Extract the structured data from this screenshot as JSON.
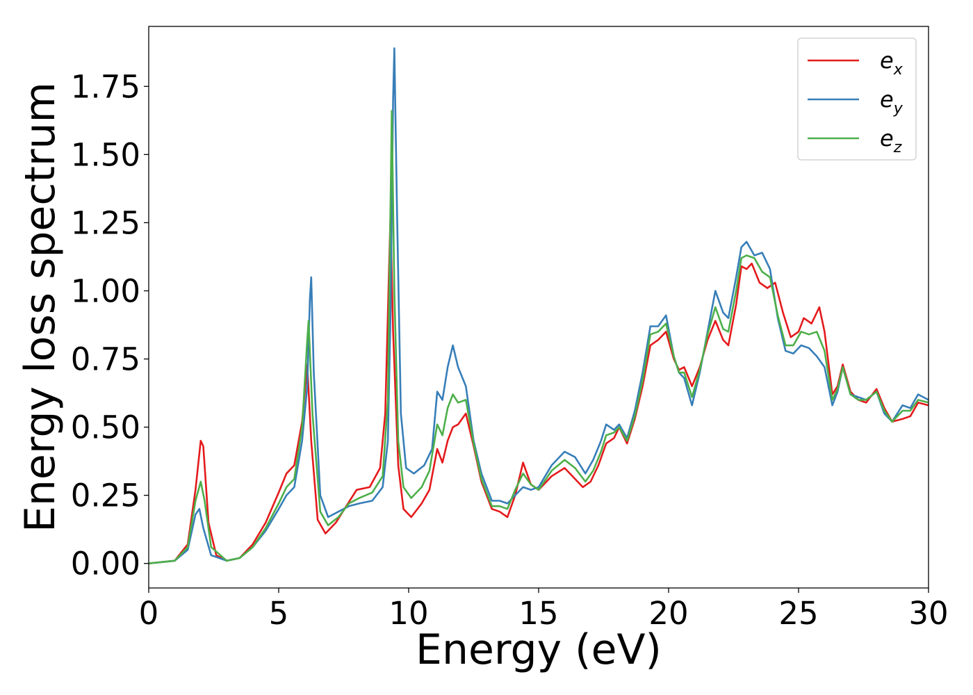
{
  "chart_data": {
    "type": "line",
    "title": "",
    "xlabel": "Energy (eV)",
    "ylabel": "Energy loss spectrum",
    "xlim": [
      0,
      30
    ],
    "ylim": [
      -0.09,
      1.97
    ],
    "xticks": [
      0,
      5,
      10,
      15,
      20,
      25,
      30
    ],
    "xtick_labels": [
      "0",
      "5",
      "10",
      "15",
      "20",
      "25",
      "30"
    ],
    "yticks": [
      0.0,
      0.25,
      0.5,
      0.75,
      1.0,
      1.25,
      1.5,
      1.75
    ],
    "ytick_labels": [
      "0.00",
      "0.25",
      "0.50",
      "0.75",
      "1.00",
      "1.25",
      "1.50",
      "1.75"
    ],
    "grid": false,
    "legend_position": "top-right",
    "series": [
      {
        "name": "e_x",
        "legend_base": "e",
        "legend_sub": "x",
        "color": "#e41a1c",
        "points": [
          [
            0,
            0
          ],
          [
            1,
            0.01
          ],
          [
            1.5,
            0.07
          ],
          [
            1.8,
            0.27
          ],
          [
            2.0,
            0.45
          ],
          [
            2.1,
            0.43
          ],
          [
            2.3,
            0.15
          ],
          [
            2.6,
            0.03
          ],
          [
            3.0,
            0.01
          ],
          [
            3.5,
            0.02
          ],
          [
            4.0,
            0.07
          ],
          [
            4.5,
            0.15
          ],
          [
            5.0,
            0.26
          ],
          [
            5.3,
            0.33
          ],
          [
            5.6,
            0.36
          ],
          [
            5.9,
            0.52
          ],
          [
            6.1,
            0.73
          ],
          [
            6.25,
            0.45
          ],
          [
            6.5,
            0.16
          ],
          [
            6.8,
            0.11
          ],
          [
            7.2,
            0.15
          ],
          [
            7.6,
            0.21
          ],
          [
            8.0,
            0.27
          ],
          [
            8.5,
            0.28
          ],
          [
            8.9,
            0.35
          ],
          [
            9.1,
            0.55
          ],
          [
            9.25,
            1.1
          ],
          [
            9.3,
            1.27
          ],
          [
            9.4,
            0.85
          ],
          [
            9.6,
            0.36
          ],
          [
            9.8,
            0.2
          ],
          [
            10.1,
            0.17
          ],
          [
            10.5,
            0.22
          ],
          [
            10.8,
            0.27
          ],
          [
            11.1,
            0.42
          ],
          [
            11.3,
            0.37
          ],
          [
            11.5,
            0.45
          ],
          [
            11.7,
            0.5
          ],
          [
            11.9,
            0.51
          ],
          [
            12.2,
            0.55
          ],
          [
            12.5,
            0.43
          ],
          [
            12.8,
            0.3
          ],
          [
            13.2,
            0.2
          ],
          [
            13.5,
            0.19
          ],
          [
            13.8,
            0.17
          ],
          [
            14.1,
            0.25
          ],
          [
            14.4,
            0.37
          ],
          [
            14.7,
            0.29
          ],
          [
            15.0,
            0.27
          ],
          [
            15.5,
            0.32
          ],
          [
            16.0,
            0.35
          ],
          [
            16.4,
            0.31
          ],
          [
            16.7,
            0.28
          ],
          [
            17.0,
            0.3
          ],
          [
            17.3,
            0.36
          ],
          [
            17.6,
            0.44
          ],
          [
            17.9,
            0.46
          ],
          [
            18.1,
            0.5
          ],
          [
            18.4,
            0.44
          ],
          [
            18.7,
            0.53
          ],
          [
            19.0,
            0.65
          ],
          [
            19.3,
            0.8
          ],
          [
            19.6,
            0.82
          ],
          [
            19.9,
            0.85
          ],
          [
            20.2,
            0.75
          ],
          [
            20.4,
            0.71
          ],
          [
            20.6,
            0.72
          ],
          [
            20.9,
            0.65
          ],
          [
            21.2,
            0.72
          ],
          [
            21.5,
            0.82
          ],
          [
            21.8,
            0.89
          ],
          [
            22.1,
            0.82
          ],
          [
            22.3,
            0.8
          ],
          [
            22.6,
            0.95
          ],
          [
            22.8,
            1.09
          ],
          [
            23.0,
            1.08
          ],
          [
            23.2,
            1.1
          ],
          [
            23.5,
            1.03
          ],
          [
            23.8,
            1.01
          ],
          [
            24.1,
            1.03
          ],
          [
            24.4,
            0.92
          ],
          [
            24.7,
            0.83
          ],
          [
            25.0,
            0.85
          ],
          [
            25.2,
            0.9
          ],
          [
            25.5,
            0.88
          ],
          [
            25.8,
            0.94
          ],
          [
            26.0,
            0.85
          ],
          [
            26.3,
            0.62
          ],
          [
            26.5,
            0.65
          ],
          [
            26.7,
            0.73
          ],
          [
            27.0,
            0.63
          ],
          [
            27.3,
            0.6
          ],
          [
            27.6,
            0.59
          ],
          [
            28.0,
            0.64
          ],
          [
            28.3,
            0.57
          ],
          [
            28.6,
            0.52
          ],
          [
            29.0,
            0.53
          ],
          [
            29.3,
            0.54
          ],
          [
            29.6,
            0.59
          ],
          [
            30.0,
            0.58
          ]
        ]
      },
      {
        "name": "e_y",
        "legend_base": "e",
        "legend_sub": "y",
        "color": "#377eb8",
        "points": [
          [
            0,
            0
          ],
          [
            1,
            0.01
          ],
          [
            1.5,
            0.05
          ],
          [
            1.8,
            0.18
          ],
          [
            1.95,
            0.2
          ],
          [
            2.1,
            0.13
          ],
          [
            2.4,
            0.03
          ],
          [
            3.0,
            0.01
          ],
          [
            3.5,
            0.02
          ],
          [
            4.0,
            0.06
          ],
          [
            4.5,
            0.12
          ],
          [
            5.0,
            0.2
          ],
          [
            5.3,
            0.25
          ],
          [
            5.6,
            0.28
          ],
          [
            5.9,
            0.45
          ],
          [
            6.1,
            0.65
          ],
          [
            6.2,
            0.97
          ],
          [
            6.25,
            1.05
          ],
          [
            6.35,
            0.7
          ],
          [
            6.6,
            0.25
          ],
          [
            6.9,
            0.17
          ],
          [
            7.3,
            0.19
          ],
          [
            7.7,
            0.21
          ],
          [
            8.1,
            0.22
          ],
          [
            8.6,
            0.23
          ],
          [
            9.0,
            0.28
          ],
          [
            9.2,
            0.45
          ],
          [
            9.3,
            0.9
          ],
          [
            9.4,
            1.7
          ],
          [
            9.45,
            1.89
          ],
          [
            9.55,
            1.3
          ],
          [
            9.7,
            0.55
          ],
          [
            9.9,
            0.35
          ],
          [
            10.2,
            0.33
          ],
          [
            10.6,
            0.36
          ],
          [
            10.9,
            0.42
          ],
          [
            11.1,
            0.63
          ],
          [
            11.3,
            0.6
          ],
          [
            11.5,
            0.72
          ],
          [
            11.7,
            0.8
          ],
          [
            11.9,
            0.72
          ],
          [
            12.2,
            0.65
          ],
          [
            12.5,
            0.45
          ],
          [
            12.8,
            0.33
          ],
          [
            13.2,
            0.23
          ],
          [
            13.5,
            0.23
          ],
          [
            13.8,
            0.22
          ],
          [
            14.1,
            0.25
          ],
          [
            14.4,
            0.28
          ],
          [
            14.7,
            0.27
          ],
          [
            15.0,
            0.28
          ],
          [
            15.5,
            0.36
          ],
          [
            16.0,
            0.41
          ],
          [
            16.4,
            0.39
          ],
          [
            16.8,
            0.33
          ],
          [
            17.1,
            0.38
          ],
          [
            17.4,
            0.45
          ],
          [
            17.6,
            0.51
          ],
          [
            17.9,
            0.49
          ],
          [
            18.1,
            0.51
          ],
          [
            18.4,
            0.46
          ],
          [
            18.7,
            0.56
          ],
          [
            19.0,
            0.7
          ],
          [
            19.3,
            0.87
          ],
          [
            19.6,
            0.87
          ],
          [
            19.9,
            0.91
          ],
          [
            20.2,
            0.76
          ],
          [
            20.4,
            0.7
          ],
          [
            20.6,
            0.68
          ],
          [
            20.9,
            0.58
          ],
          [
            21.2,
            0.7
          ],
          [
            21.5,
            0.85
          ],
          [
            21.8,
            1.0
          ],
          [
            22.1,
            0.92
          ],
          [
            22.3,
            0.9
          ],
          [
            22.6,
            1.05
          ],
          [
            22.8,
            1.16
          ],
          [
            23.0,
            1.18
          ],
          [
            23.3,
            1.13
          ],
          [
            23.6,
            1.14
          ],
          [
            23.9,
            1.08
          ],
          [
            24.2,
            0.9
          ],
          [
            24.5,
            0.78
          ],
          [
            24.8,
            0.77
          ],
          [
            25.1,
            0.8
          ],
          [
            25.4,
            0.79
          ],
          [
            25.7,
            0.76
          ],
          [
            26.0,
            0.72
          ],
          [
            26.3,
            0.58
          ],
          [
            26.5,
            0.63
          ],
          [
            26.7,
            0.72
          ],
          [
            27.0,
            0.62
          ],
          [
            27.3,
            0.61
          ],
          [
            27.6,
            0.6
          ],
          [
            28.0,
            0.63
          ],
          [
            28.3,
            0.55
          ],
          [
            28.6,
            0.52
          ],
          [
            29.0,
            0.58
          ],
          [
            29.3,
            0.57
          ],
          [
            29.6,
            0.62
          ],
          [
            30.0,
            0.6
          ]
        ]
      },
      {
        "name": "e_z",
        "legend_base": "e",
        "legend_sub": "z",
        "color": "#4daf4a",
        "points": [
          [
            0,
            0
          ],
          [
            1,
            0.01
          ],
          [
            1.5,
            0.06
          ],
          [
            1.8,
            0.23
          ],
          [
            2.0,
            0.3
          ],
          [
            2.15,
            0.23
          ],
          [
            2.4,
            0.06
          ],
          [
            3.0,
            0.01
          ],
          [
            3.5,
            0.02
          ],
          [
            4.0,
            0.06
          ],
          [
            4.5,
            0.13
          ],
          [
            5.0,
            0.22
          ],
          [
            5.3,
            0.28
          ],
          [
            5.6,
            0.31
          ],
          [
            5.9,
            0.5
          ],
          [
            6.1,
            0.82
          ],
          [
            6.15,
            0.89
          ],
          [
            6.3,
            0.55
          ],
          [
            6.6,
            0.19
          ],
          [
            6.9,
            0.14
          ],
          [
            7.3,
            0.17
          ],
          [
            7.7,
            0.22
          ],
          [
            8.1,
            0.24
          ],
          [
            8.6,
            0.26
          ],
          [
            9.0,
            0.32
          ],
          [
            9.2,
            0.6
          ],
          [
            9.3,
            1.3
          ],
          [
            9.35,
            1.66
          ],
          [
            9.45,
            1.0
          ],
          [
            9.6,
            0.45
          ],
          [
            9.8,
            0.28
          ],
          [
            10.1,
            0.24
          ],
          [
            10.5,
            0.28
          ],
          [
            10.8,
            0.34
          ],
          [
            11.1,
            0.51
          ],
          [
            11.3,
            0.47
          ],
          [
            11.5,
            0.57
          ],
          [
            11.7,
            0.62
          ],
          [
            11.9,
            0.59
          ],
          [
            12.2,
            0.6
          ],
          [
            12.5,
            0.44
          ],
          [
            12.8,
            0.31
          ],
          [
            13.2,
            0.21
          ],
          [
            13.5,
            0.21
          ],
          [
            13.8,
            0.2
          ],
          [
            14.1,
            0.27
          ],
          [
            14.4,
            0.33
          ],
          [
            14.7,
            0.29
          ],
          [
            15.0,
            0.27
          ],
          [
            15.5,
            0.34
          ],
          [
            16.0,
            0.38
          ],
          [
            16.4,
            0.35
          ],
          [
            16.8,
            0.3
          ],
          [
            17.1,
            0.34
          ],
          [
            17.4,
            0.41
          ],
          [
            17.6,
            0.47
          ],
          [
            17.9,
            0.48
          ],
          [
            18.1,
            0.5
          ],
          [
            18.4,
            0.45
          ],
          [
            18.7,
            0.54
          ],
          [
            19.0,
            0.67
          ],
          [
            19.3,
            0.84
          ],
          [
            19.6,
            0.85
          ],
          [
            19.9,
            0.88
          ],
          [
            20.2,
            0.76
          ],
          [
            20.4,
            0.7
          ],
          [
            20.6,
            0.7
          ],
          [
            20.9,
            0.61
          ],
          [
            21.2,
            0.71
          ],
          [
            21.5,
            0.84
          ],
          [
            21.8,
            0.94
          ],
          [
            22.1,
            0.86
          ],
          [
            22.3,
            0.85
          ],
          [
            22.6,
            1.0
          ],
          [
            22.8,
            1.12
          ],
          [
            23.0,
            1.13
          ],
          [
            23.3,
            1.12
          ],
          [
            23.6,
            1.07
          ],
          [
            23.9,
            1.05
          ],
          [
            24.2,
            0.91
          ],
          [
            24.5,
            0.8
          ],
          [
            24.8,
            0.8
          ],
          [
            25.1,
            0.85
          ],
          [
            25.4,
            0.84
          ],
          [
            25.7,
            0.85
          ],
          [
            26.0,
            0.78
          ],
          [
            26.3,
            0.6
          ],
          [
            26.5,
            0.64
          ],
          [
            26.7,
            0.72
          ],
          [
            27.0,
            0.62
          ],
          [
            27.3,
            0.6
          ],
          [
            27.6,
            0.6
          ],
          [
            28.0,
            0.63
          ],
          [
            28.3,
            0.56
          ],
          [
            28.6,
            0.52
          ],
          [
            29.0,
            0.56
          ],
          [
            29.3,
            0.56
          ],
          [
            29.6,
            0.6
          ],
          [
            30.0,
            0.59
          ]
        ]
      }
    ]
  }
}
